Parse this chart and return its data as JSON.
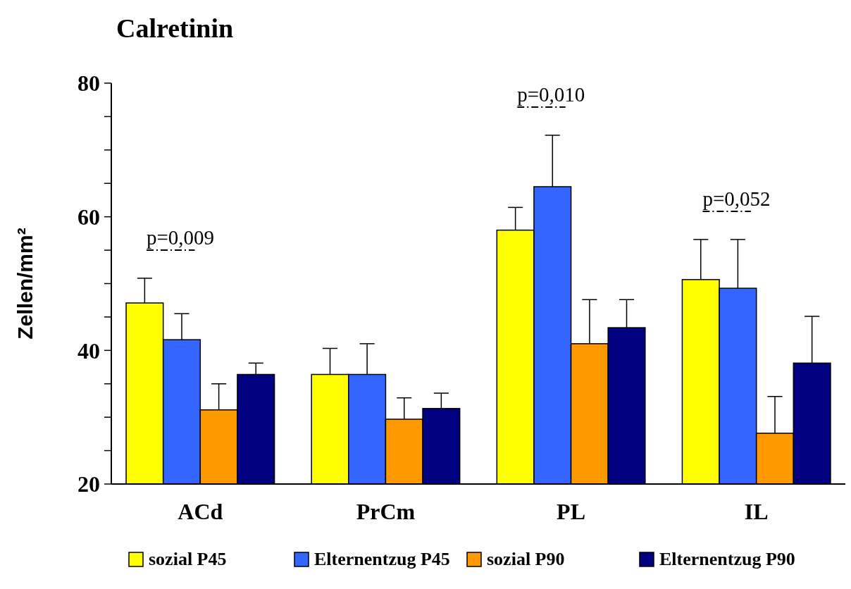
{
  "chart_data": {
    "type": "bar",
    "title": "Calretinin",
    "ylabel": "Zellen/mm²",
    "categories": [
      "ACd",
      "PrCm",
      "PL",
      "IL"
    ],
    "series": [
      {
        "name": "sozial P45",
        "color": "#ffff00",
        "values": [
          47.1,
          36.4,
          58.0,
          50.6
        ],
        "errors": [
          [
            47.1,
            50.8
          ],
          [
            36.4,
            40.3
          ],
          [
            58.0,
            61.4
          ],
          [
            50.6,
            56.6
          ]
        ]
      },
      {
        "name": "Elternentzug P45",
        "color": "#3366ff",
        "values": [
          41.6,
          36.4,
          64.5,
          49.3
        ],
        "errors": [
          [
            41.6,
            45.5
          ],
          [
            36.4,
            41.0
          ],
          [
            64.5,
            72.2
          ],
          [
            49.3,
            56.6
          ]
        ]
      },
      {
        "name": "sozial P90",
        "color": "#ff9900",
        "values": [
          31.1,
          29.7,
          41.0,
          27.6
        ],
        "errors": [
          [
            31.1,
            35.0
          ],
          [
            29.7,
            32.9
          ],
          [
            41.0,
            47.6
          ],
          [
            27.6,
            33.1
          ]
        ]
      },
      {
        "name": "Elternentzug P90",
        "color": "#000080",
        "values": [
          36.4,
          31.3,
          43.4,
          38.1
        ],
        "errors": [
          [
            36.4,
            38.1
          ],
          [
            31.3,
            33.6
          ],
          [
            43.4,
            47.6
          ],
          [
            38.1,
            45.1
          ]
        ]
      }
    ],
    "ylim": [
      20,
      80
    ],
    "yticks": [
      20,
      {
        "value": 25,
        "label": null
      },
      {
        "value": 30,
        "label": null
      },
      {
        "value": 35,
        "label": null
      },
      40,
      {
        "value": 45,
        "label": null
      },
      {
        "value": 50,
        "label": null
      },
      {
        "value": 55,
        "label": null
      },
      60,
      {
        "value": 65,
        "label": null
      },
      {
        "value": 70,
        "label": null
      },
      {
        "value": 75,
        "label": null
      },
      80
    ],
    "annotations": [
      "p=0,009",
      "p=0,010",
      "p=0,052"
    ],
    "legend": "bottom",
    "grid": false
  }
}
